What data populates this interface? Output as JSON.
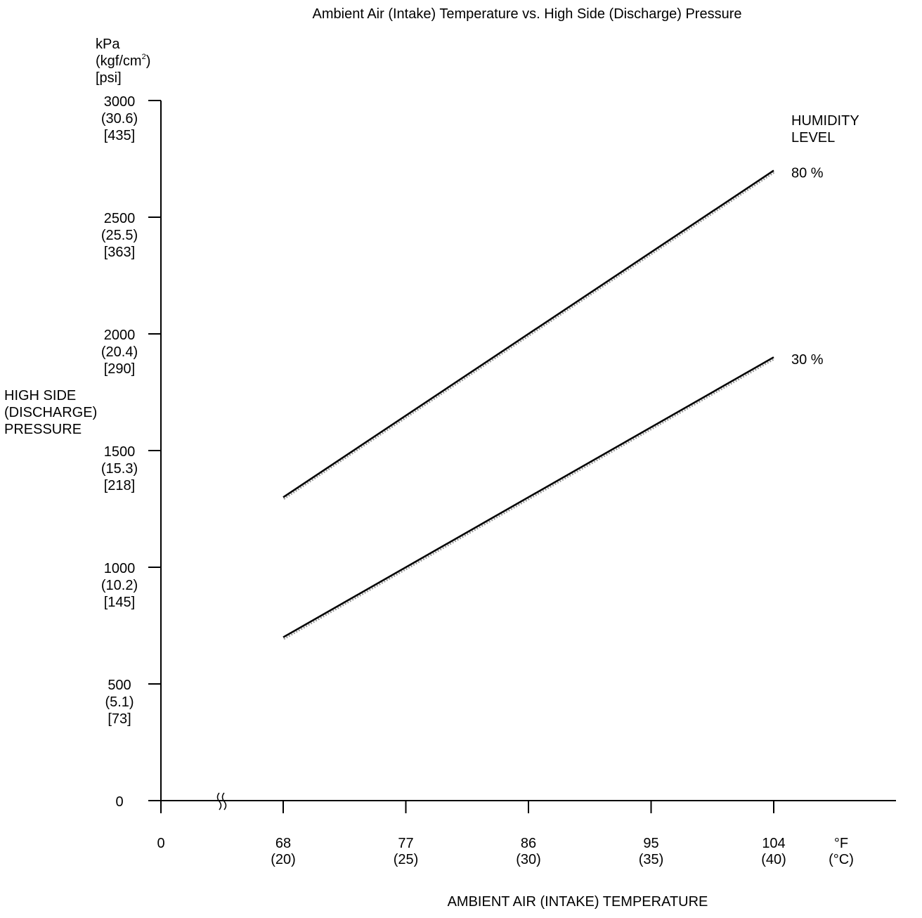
{
  "chart_data": {
    "type": "line",
    "title": "Ambient Air (Intake) Temperature vs. High Side (Discharge) Pressure",
    "y_unit_lines": [
      "kPa",
      "(kgf/cm",
      ")",
      "[psi]"
    ],
    "y_unit_superscript": "2",
    "ylabel_lines": [
      "HIGH SIDE",
      "(DISCHARGE)",
      "PRESSURE"
    ],
    "xlabel": "AMBIENT AIR (INTAKE) TEMPERATURE",
    "x_unit_lines": [
      "°F",
      "(°C)"
    ],
    "legend_title_lines": [
      "HUMIDITY",
      "LEVEL"
    ],
    "ylim": [
      0,
      3000
    ],
    "y_ticks": [
      {
        "value": 0,
        "lines": [
          "0"
        ]
      },
      {
        "value": 500,
        "lines": [
          "500",
          "(5.1)",
          "[73]"
        ]
      },
      {
        "value": 1000,
        "lines": [
          "1000",
          "(10.2)",
          "[145]"
        ]
      },
      {
        "value": 1500,
        "lines": [
          "1500",
          "(15.3)",
          "[218]"
        ]
      },
      {
        "value": 2000,
        "lines": [
          "2000",
          "(20.4)",
          "[290]"
        ]
      },
      {
        "value": 2500,
        "lines": [
          "2500",
          "(25.5)",
          "[363]"
        ]
      },
      {
        "value": 3000,
        "lines": [
          "3000",
          "(30.6)",
          "[435]"
        ]
      }
    ],
    "x_origin_label": "0",
    "x_axis_break": true,
    "x_ticks": [
      {
        "value": 68,
        "lines": [
          "68",
          "(20)"
        ]
      },
      {
        "value": 77,
        "lines": [
          "77",
          "(25)"
        ]
      },
      {
        "value": 86,
        "lines": [
          "86",
          "(30)"
        ]
      },
      {
        "value": 95,
        "lines": [
          "95",
          "(35)"
        ]
      },
      {
        "value": 104,
        "lines": [
          "104",
          "(40)"
        ]
      }
    ],
    "series": [
      {
        "name": "80 %",
        "x": [
          68,
          104
        ],
        "values": [
          1300,
          2700
        ]
      },
      {
        "name": "30 %",
        "x": [
          68,
          104
        ],
        "values": [
          700,
          1900
        ]
      }
    ],
    "grid": false
  }
}
